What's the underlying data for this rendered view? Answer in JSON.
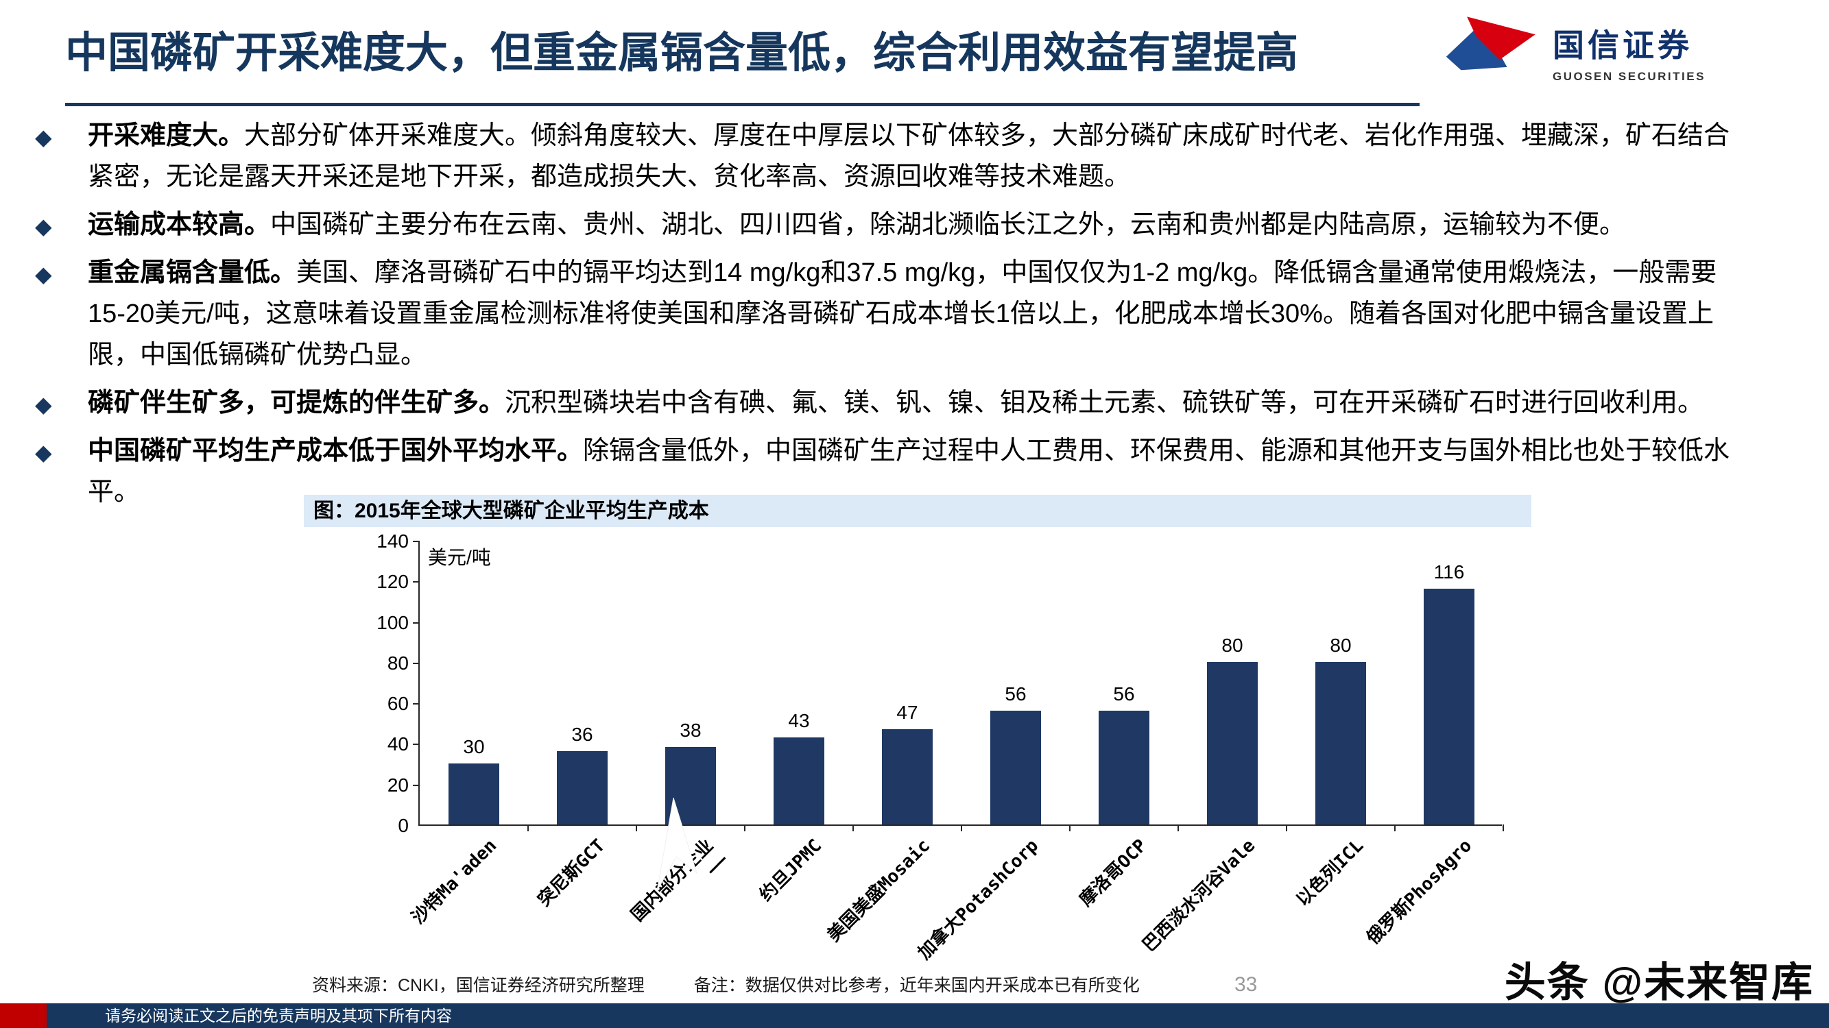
{
  "slide": {
    "title": "中国磷矿开采难度大，但重金属镉含量低，综合利用效益有望提高",
    "page_number": "33",
    "watermark": "头条 @未来智库",
    "disclaimer": "请务必阅读正文之后的免责声明及其项下所有内容"
  },
  "logo": {
    "name_cn": "国信证券",
    "name_en": "GUOSEN SECURITIES"
  },
  "bullets": [
    {
      "lead": "开采难度大。",
      "text": "大部分矿体开采难度大。倾斜角度较大、厚度在中厚层以下矿体较多，大部分磷矿床成矿时代老、岩化作用强、埋藏深，矿石结合紧密，无论是露天开采还是地下开采，都造成损失大、贫化率高、资源回收难等技术难题。"
    },
    {
      "lead": "运输成本较高。",
      "text": "中国磷矿主要分布在云南、贵州、湖北、四川四省，除湖北濒临长江之外，云南和贵州都是内陆高原，运输较为不便。"
    },
    {
      "lead": "重金属镉含量低。",
      "text": "美国、摩洛哥磷矿石中的镉平均达到14 mg/kg和37.5 mg/kg，中国仅仅为1-2 mg/kg。降低镉含量通常使用煅烧法，一般需要15-20美元/吨，这意味着设置重金属检测标准将使美国和摩洛哥磷矿石成本增长1倍以上，化肥成本增长30%。随着各国对化肥中镉含量设置上限，中国低镉磷矿优势凸显。"
    },
    {
      "lead": "磷矿伴生矿多，可提炼的伴生矿多。",
      "text": "沉积型磷块岩中含有碘、氟、镁、钒、镍、钼及稀土元素、硫铁矿等，可在开采磷矿石时进行回收利用。"
    },
    {
      "lead": "中国磷矿平均生产成本低于国外平均水平。",
      "text": "除镉含量低外，中国磷矿生产过程中人工费用、环保费用、能源和其他开支与国外相比也处于较低水平。"
    }
  ],
  "chart": {
    "header": "图：2015年全球大型磷矿企业平均生产成本",
    "source_note": "资料来源：CNKI，国信证券经济研究所整理",
    "remark": "备注：数据仅供对比参考，近年来国内开采成本已有所变化"
  },
  "chart_data": {
    "type": "bar",
    "title": "图：2015年全球大型磷矿企业平均生产成本",
    "unit_label": "美元/吨",
    "categories": [
      "沙特Ma'aden",
      "突尼斯GCT",
      "国内部分企业\n——",
      "约旦JPMC",
      "美国美盛Mosaic",
      "加拿大PotashCorp",
      "摩洛哥OCP",
      "巴西淡水河谷Vale",
      "以色列ICL",
      "俄罗斯PhosAgro"
    ],
    "values": [
      30,
      36,
      38,
      43,
      47,
      56,
      56,
      80,
      80,
      116
    ],
    "xlabel": "",
    "ylabel": "美元/吨",
    "ylim": [
      0,
      140
    ],
    "yticks": [
      0,
      20,
      40,
      60,
      80,
      100,
      120,
      140
    ],
    "bar_color": "#1F3864",
    "grid": false,
    "legend": false
  },
  "colors": {
    "accent_navy": "#17375E",
    "bar_navy": "#1F3864",
    "chart_header_bg": "#DCE9F7",
    "footer_navy": "#17375E",
    "footer_red": "#C00000",
    "logo_red": "#D7000F",
    "logo_blue": "#1F4E96"
  }
}
